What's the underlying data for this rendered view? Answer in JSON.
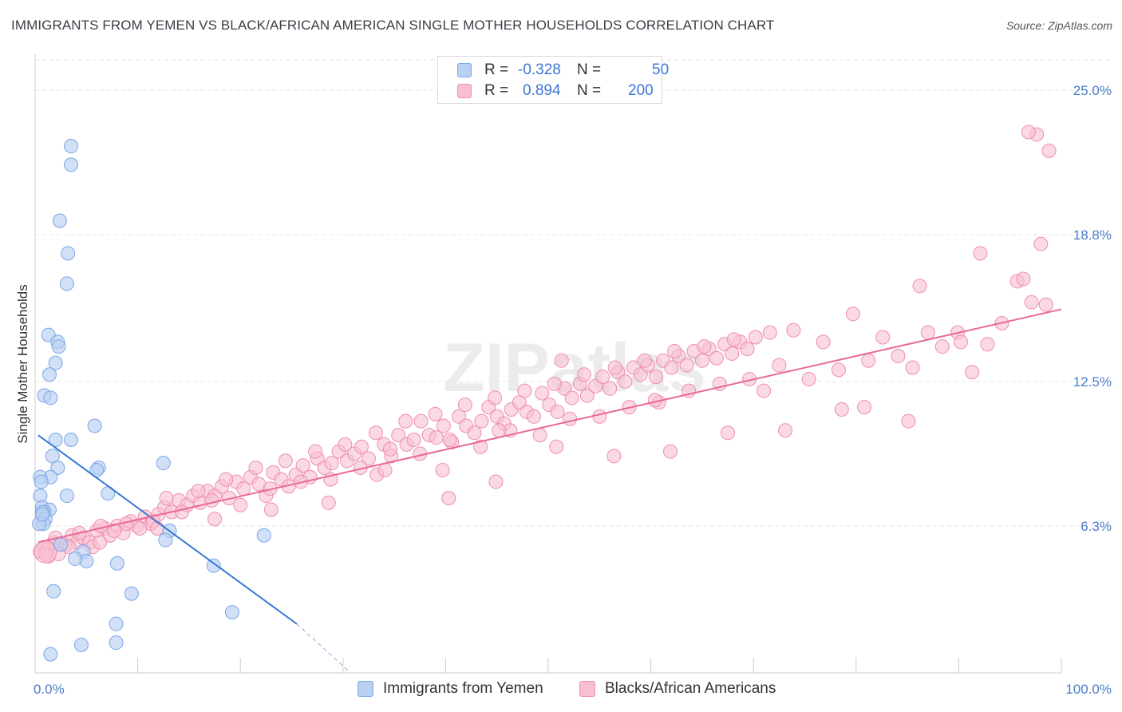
{
  "title": "IMMIGRANTS FROM YEMEN VS BLACK/AFRICAN AMERICAN SINGLE MOTHER HOUSEHOLDS CORRELATION CHART",
  "source": "Source: ZipAtlas.com",
  "watermark": "ZIPatlas",
  "legend_top": [
    {
      "r_label": "R =",
      "r_value": "-0.328",
      "n_label": "N =",
      "n_value": "50",
      "fill": "#b8d0f2",
      "stroke": "#7aa6e6"
    },
    {
      "r_label": "R =",
      "r_value": "0.894",
      "n_label": "N =",
      "n_value": "200",
      "fill": "#f8bfd1",
      "stroke": "#ee8eae"
    }
  ],
  "legend_bottom": [
    {
      "label": "Immigrants from Yemen",
      "fill": "#b8d0f2",
      "stroke": "#7aa6e6"
    },
    {
      "label": "Blacks/African Americans",
      "fill": "#f8bfd1",
      "stroke": "#ee8eae"
    }
  ],
  "chart_data": {
    "type": "scatter",
    "title": "IMMIGRANTS FROM YEMEN VS BLACK/AFRICAN AMERICAN SINGLE MOTHER HOUSEHOLDS CORRELATION CHART",
    "xlabel": "",
    "ylabel": "Single Mother Households",
    "xlim": [
      0,
      100
    ],
    "ylim": [
      0,
      26.3
    ],
    "x_tick_labels": [
      {
        "value": 0,
        "label": "0.0%"
      },
      {
        "value": 100,
        "label": "100.0%"
      }
    ],
    "y_tick_labels": [
      {
        "value": 6.3,
        "label": "6.3%"
      },
      {
        "value": 12.5,
        "label": "12.5%"
      },
      {
        "value": 18.8,
        "label": "18.8%"
      },
      {
        "value": 25.0,
        "label": "25.0%"
      }
    ],
    "colors": {
      "blue_fill": "#b8d0f2",
      "blue_stroke": "#7aa6e6",
      "blue_line": "#3a78d4",
      "pink_fill": "#f8bfd1",
      "pink_stroke": "#ee8eae",
      "pink_line": "#e8689a",
      "grid": "#e3e3e3",
      "tick_label": "#4a7ec9"
    },
    "series": [
      {
        "name": "Immigrants from Yemen",
        "color": "blue",
        "points": [
          [
            3.5,
            22.6
          ],
          [
            3.5,
            21.8
          ],
          [
            2.4,
            19.4
          ],
          [
            3.2,
            18.0
          ],
          [
            3.1,
            16.7
          ],
          [
            1.3,
            14.5
          ],
          [
            2.2,
            14.2
          ],
          [
            2.3,
            14.0
          ],
          [
            2.0,
            13.3
          ],
          [
            1.4,
            12.8
          ],
          [
            0.9,
            11.9
          ],
          [
            1.5,
            11.8
          ],
          [
            2.0,
            10.0
          ],
          [
            3.5,
            10.0
          ],
          [
            5.8,
            10.6
          ],
          [
            1.7,
            9.3
          ],
          [
            2.2,
            8.8
          ],
          [
            1.5,
            8.4
          ],
          [
            0.5,
            8.4
          ],
          [
            0.6,
            8.2
          ],
          [
            0.5,
            7.6
          ],
          [
            3.1,
            7.6
          ],
          [
            7.1,
            7.7
          ],
          [
            6.2,
            8.8
          ],
          [
            6.0,
            8.7
          ],
          [
            12.5,
            9.0
          ],
          [
            0.7,
            7.1
          ],
          [
            1.4,
            7.0
          ],
          [
            0.9,
            6.9
          ],
          [
            0.7,
            6.9
          ],
          [
            1.0,
            6.6
          ],
          [
            0.8,
            6.4
          ],
          [
            0.4,
            6.4
          ],
          [
            13.1,
            6.1
          ],
          [
            12.7,
            5.7
          ],
          [
            22.3,
            5.9
          ],
          [
            2.5,
            5.5
          ],
          [
            4.7,
            5.2
          ],
          [
            5.0,
            4.8
          ],
          [
            3.9,
            4.9
          ],
          [
            8.0,
            4.7
          ],
          [
            17.4,
            4.6
          ],
          [
            1.8,
            3.5
          ],
          [
            9.4,
            3.4
          ],
          [
            19.2,
            2.6
          ],
          [
            7.9,
            2.1
          ],
          [
            4.5,
            1.2
          ],
          [
            7.9,
            1.3
          ],
          [
            1.5,
            0.8
          ],
          [
            0.7,
            6.8
          ]
        ],
        "trend": {
          "x1": 0.3,
          "y1": 10.2,
          "x2": 25.5,
          "y2": 2.1,
          "dash_x2": 30.5,
          "dash_y2": 0.1
        }
      },
      {
        "name": "Blacks/African Americans",
        "color": "pink",
        "points": [
          [
            0.5,
            5.2
          ],
          [
            0.9,
            5.4
          ],
          [
            1.3,
            5.0
          ],
          [
            1.8,
            5.6
          ],
          [
            2.3,
            5.1
          ],
          [
            3.0,
            5.5
          ],
          [
            3.6,
            5.9
          ],
          [
            4.1,
            5.6
          ],
          [
            4.7,
            5.8
          ],
          [
            5.3,
            5.6
          ],
          [
            6.0,
            6.1
          ],
          [
            6.8,
            6.2
          ],
          [
            7.3,
            5.9
          ],
          [
            8.0,
            6.3
          ],
          [
            8.6,
            6.0
          ],
          [
            9.3,
            6.5
          ],
          [
            9.9,
            6.3
          ],
          [
            10.7,
            6.7
          ],
          [
            11.3,
            6.4
          ],
          [
            12.0,
            6.8
          ],
          [
            12.6,
            7.1
          ],
          [
            13.3,
            6.9
          ],
          [
            14.0,
            7.4
          ],
          [
            14.8,
            7.2
          ],
          [
            15.4,
            7.6
          ],
          [
            16.1,
            7.3
          ],
          [
            16.8,
            7.8
          ],
          [
            17.5,
            7.6
          ],
          [
            18.2,
            8.0
          ],
          [
            18.9,
            7.5
          ],
          [
            19.6,
            8.2
          ],
          [
            20.3,
            7.9
          ],
          [
            21.0,
            8.4
          ],
          [
            21.8,
            8.1
          ],
          [
            22.5,
            7.6
          ],
          [
            23.2,
            8.6
          ],
          [
            24.0,
            8.3
          ],
          [
            24.7,
            8.0
          ],
          [
            25.4,
            8.5
          ],
          [
            26.1,
            8.9
          ],
          [
            26.8,
            8.4
          ],
          [
            27.5,
            9.2
          ],
          [
            28.2,
            8.8
          ],
          [
            28.9,
            9.0
          ],
          [
            29.6,
            9.5
          ],
          [
            30.4,
            9.1
          ],
          [
            31.1,
            9.4
          ],
          [
            31.8,
            9.7
          ],
          [
            32.5,
            9.2
          ],
          [
            33.3,
            8.5
          ],
          [
            34.0,
            9.8
          ],
          [
            34.7,
            9.3
          ],
          [
            35.4,
            10.2
          ],
          [
            36.2,
            9.8
          ],
          [
            36.9,
            10.0
          ],
          [
            37.6,
            10.8
          ],
          [
            38.4,
            10.2
          ],
          [
            39.1,
            10.1
          ],
          [
            39.8,
            10.6
          ],
          [
            40.6,
            9.9
          ],
          [
            41.3,
            11.0
          ],
          [
            42.0,
            10.6
          ],
          [
            42.8,
            10.3
          ],
          [
            43.5,
            10.8
          ],
          [
            44.2,
            11.4
          ],
          [
            45.0,
            11.0
          ],
          [
            45.7,
            10.7
          ],
          [
            46.4,
            11.3
          ],
          [
            47.2,
            11.6
          ],
          [
            47.9,
            11.2
          ],
          [
            48.6,
            11.0
          ],
          [
            49.4,
            12.0
          ],
          [
            50.1,
            11.5
          ],
          [
            50.9,
            11.2
          ],
          [
            51.6,
            12.2
          ],
          [
            52.3,
            11.8
          ],
          [
            53.1,
            12.4
          ],
          [
            53.8,
            11.9
          ],
          [
            54.6,
            12.3
          ],
          [
            55.3,
            12.7
          ],
          [
            56.0,
            12.2
          ],
          [
            56.8,
            12.9
          ],
          [
            57.5,
            12.5
          ],
          [
            58.3,
            13.1
          ],
          [
            59.0,
            12.8
          ],
          [
            59.7,
            13.2
          ],
          [
            60.5,
            12.7
          ],
          [
            61.2,
            13.4
          ],
          [
            62.0,
            13.1
          ],
          [
            62.7,
            13.6
          ],
          [
            63.5,
            13.2
          ],
          [
            64.2,
            13.8
          ],
          [
            65.0,
            13.4
          ],
          [
            65.7,
            13.9
          ],
          [
            66.4,
            13.5
          ],
          [
            67.2,
            14.1
          ],
          [
            67.9,
            13.7
          ],
          [
            68.7,
            14.2
          ],
          [
            69.4,
            13.9
          ],
          [
            70.2,
            14.4
          ],
          [
            1.2,
            5.3
          ],
          [
            2.0,
            5.8
          ],
          [
            3.3,
            5.4
          ],
          [
            4.3,
            6.0
          ],
          [
            5.6,
            5.4
          ],
          [
            6.4,
            6.3
          ],
          [
            7.7,
            6.1
          ],
          [
            8.9,
            6.4
          ],
          [
            10.2,
            6.2
          ],
          [
            11.5,
            6.5
          ],
          [
            12.8,
            7.5
          ],
          [
            14.3,
            6.9
          ],
          [
            15.9,
            7.8
          ],
          [
            17.2,
            7.4
          ],
          [
            18.6,
            8.3
          ],
          [
            20.0,
            7.2
          ],
          [
            21.5,
            8.8
          ],
          [
            22.9,
            7.9
          ],
          [
            24.4,
            9.1
          ],
          [
            25.9,
            8.2
          ],
          [
            27.3,
            9.5
          ],
          [
            28.8,
            8.3
          ],
          [
            30.2,
            9.8
          ],
          [
            31.7,
            8.8
          ],
          [
            33.2,
            10.3
          ],
          [
            34.6,
            9.6
          ],
          [
            36.1,
            10.8
          ],
          [
            37.5,
            9.4
          ],
          [
            39.0,
            11.1
          ],
          [
            40.4,
            10.0
          ],
          [
            41.9,
            11.5
          ],
          [
            43.4,
            9.7
          ],
          [
            44.8,
            11.8
          ],
          [
            46.3,
            10.4
          ],
          [
            47.7,
            12.1
          ],
          [
            49.2,
            10.2
          ],
          [
            50.6,
            12.4
          ],
          [
            52.1,
            10.9
          ],
          [
            53.5,
            12.8
          ],
          [
            55.0,
            11.0
          ],
          [
            56.5,
            13.1
          ],
          [
            57.9,
            11.4
          ],
          [
            59.4,
            13.4
          ],
          [
            60.8,
            11.6
          ],
          [
            62.3,
            13.8
          ],
          [
            63.7,
            12.1
          ],
          [
            65.2,
            14.0
          ],
          [
            66.7,
            12.4
          ],
          [
            68.1,
            14.3
          ],
          [
            69.6,
            12.6
          ],
          [
            71.0,
            12.1
          ],
          [
            72.5,
            13.2
          ],
          [
            73.9,
            14.7
          ],
          [
            75.4,
            12.6
          ],
          [
            76.8,
            14.2
          ],
          [
            78.3,
            13.0
          ],
          [
            79.7,
            15.4
          ],
          [
            81.2,
            13.4
          ],
          [
            82.6,
            14.4
          ],
          [
            84.1,
            13.6
          ],
          [
            85.5,
            13.1
          ],
          [
            87.0,
            14.6
          ],
          [
            88.4,
            14.0
          ],
          [
            89.9,
            14.6
          ],
          [
            91.3,
            12.9
          ],
          [
            92.8,
            14.1
          ],
          [
            94.2,
            15.0
          ],
          [
            95.7,
            16.8
          ],
          [
            97.1,
            15.9
          ],
          [
            98.5,
            15.8
          ],
          [
            86.2,
            16.6
          ],
          [
            92.1,
            18.0
          ],
          [
            98.0,
            18.4
          ],
          [
            96.3,
            16.9
          ],
          [
            98.8,
            22.4
          ],
          [
            97.6,
            23.1
          ],
          [
            96.8,
            23.2
          ],
          [
            85.1,
            10.8
          ],
          [
            78.6,
            11.3
          ],
          [
            73.1,
            10.4
          ],
          [
            67.5,
            10.3
          ],
          [
            61.9,
            9.5
          ],
          [
            56.4,
            9.3
          ],
          [
            50.8,
            9.7
          ],
          [
            45.2,
            10.4
          ],
          [
            39.7,
            8.7
          ],
          [
            34.1,
            8.7
          ],
          [
            28.6,
            7.3
          ],
          [
            23.0,
            7.0
          ],
          [
            17.5,
            6.6
          ],
          [
            11.9,
            6.2
          ],
          [
            6.3,
            5.6
          ],
          [
            1.0,
            5.1
          ],
          [
            40.3,
            7.5
          ],
          [
            44.9,
            8.2
          ],
          [
            51.3,
            13.4
          ],
          [
            60.4,
            11.7
          ],
          [
            71.6,
            14.6
          ],
          [
            80.8,
            11.4
          ],
          [
            90.2,
            14.2
          ]
        ],
        "trend": {
          "x1": 0.3,
          "y1": 5.6,
          "x2": 100,
          "y2": 15.6
        }
      }
    ]
  }
}
